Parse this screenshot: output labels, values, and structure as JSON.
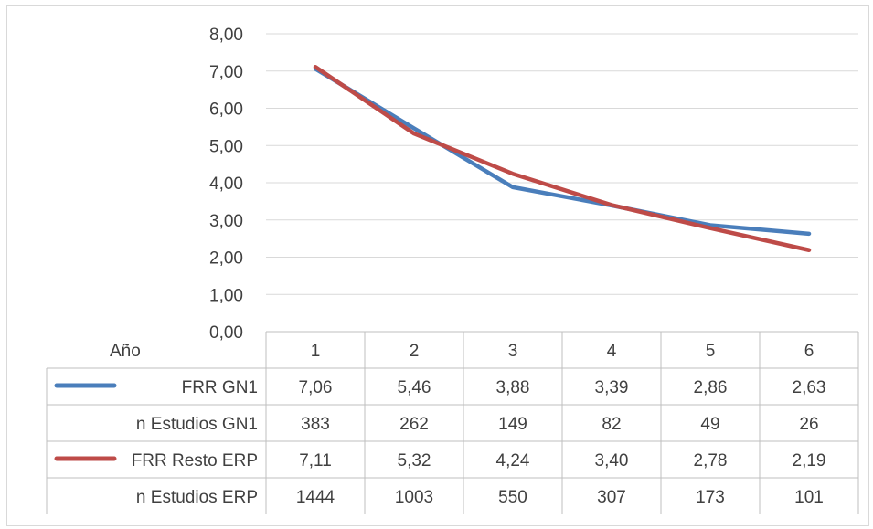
{
  "chart_data": {
    "type": "line",
    "xlabel": "Año",
    "categories": [
      "1",
      "2",
      "3",
      "4",
      "5",
      "6"
    ],
    "ylim": [
      0,
      8
    ],
    "yticks": [
      "0,00",
      "1,00",
      "2,00",
      "3,00",
      "4,00",
      "5,00",
      "6,00",
      "7,00",
      "8,00"
    ],
    "grid": true,
    "series": [
      {
        "name": "FRR GN1",
        "color": "#4a7ebb",
        "values": [
          7.06,
          5.46,
          3.88,
          3.39,
          2.86,
          2.63
        ]
      },
      {
        "name": "FRR Resto ERP",
        "color": "#be4b48",
        "values": [
          7.11,
          5.32,
          4.24,
          3.4,
          2.78,
          2.19
        ]
      }
    ],
    "table": {
      "rows": [
        {
          "label": "FRR GN1",
          "legend_color": "#4a7ebb",
          "cells": [
            "7,06",
            "5,46",
            "3,88",
            "3,39",
            "2,86",
            "2,63"
          ]
        },
        {
          "label": "n Estudios GN1",
          "legend_color": "",
          "cells": [
            "383",
            "262",
            "149",
            "82",
            "49",
            "26"
          ]
        },
        {
          "label": "FRR Resto ERP",
          "legend_color": "#be4b48",
          "cells": [
            "7,11",
            "5,32",
            "4,24",
            "3,40",
            "2,78",
            "2,19"
          ]
        },
        {
          "label": "n Estudios ERP",
          "legend_color": "",
          "cells": [
            "1444",
            "1003",
            "550",
            "307",
            "173",
            "101"
          ]
        }
      ]
    }
  }
}
